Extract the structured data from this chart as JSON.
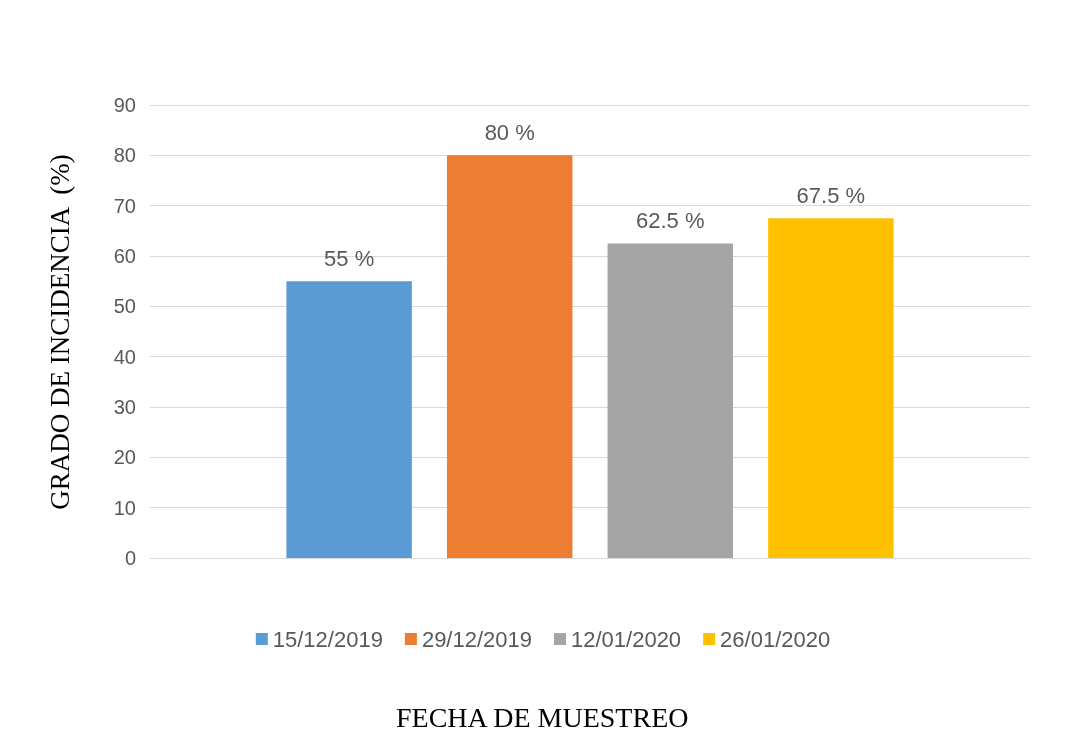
{
  "chart_data": {
    "type": "bar",
    "xlabel": "FECHA DE MUESTREO",
    "ylabel": "GRADO DE INCIDENCIA  (%)",
    "categories": [
      null
    ],
    "series": [
      {
        "name": "15/12/2019",
        "color": "#5b9bd5",
        "values": [
          55
        ],
        "value_labels": [
          "55 %"
        ]
      },
      {
        "name": "29/12/2019",
        "color": "#ed7d31",
        "values": [
          80
        ],
        "value_labels": [
          "80 %"
        ]
      },
      {
        "name": "12/01/2020",
        "color": "#a5a5a5",
        "values": [
          62.5
        ],
        "value_labels": [
          "62.5 %"
        ]
      },
      {
        "name": "26/01/2020",
        "color": "#ffc000",
        "values": [
          67.5
        ],
        "value_labels": [
          "67.5 %"
        ]
      }
    ],
    "ylim": [
      0,
      90
    ],
    "yticks": [
      0,
      10,
      20,
      30,
      40,
      50,
      60,
      70,
      80,
      90
    ],
    "grid": "y",
    "legend": "bottom"
  }
}
